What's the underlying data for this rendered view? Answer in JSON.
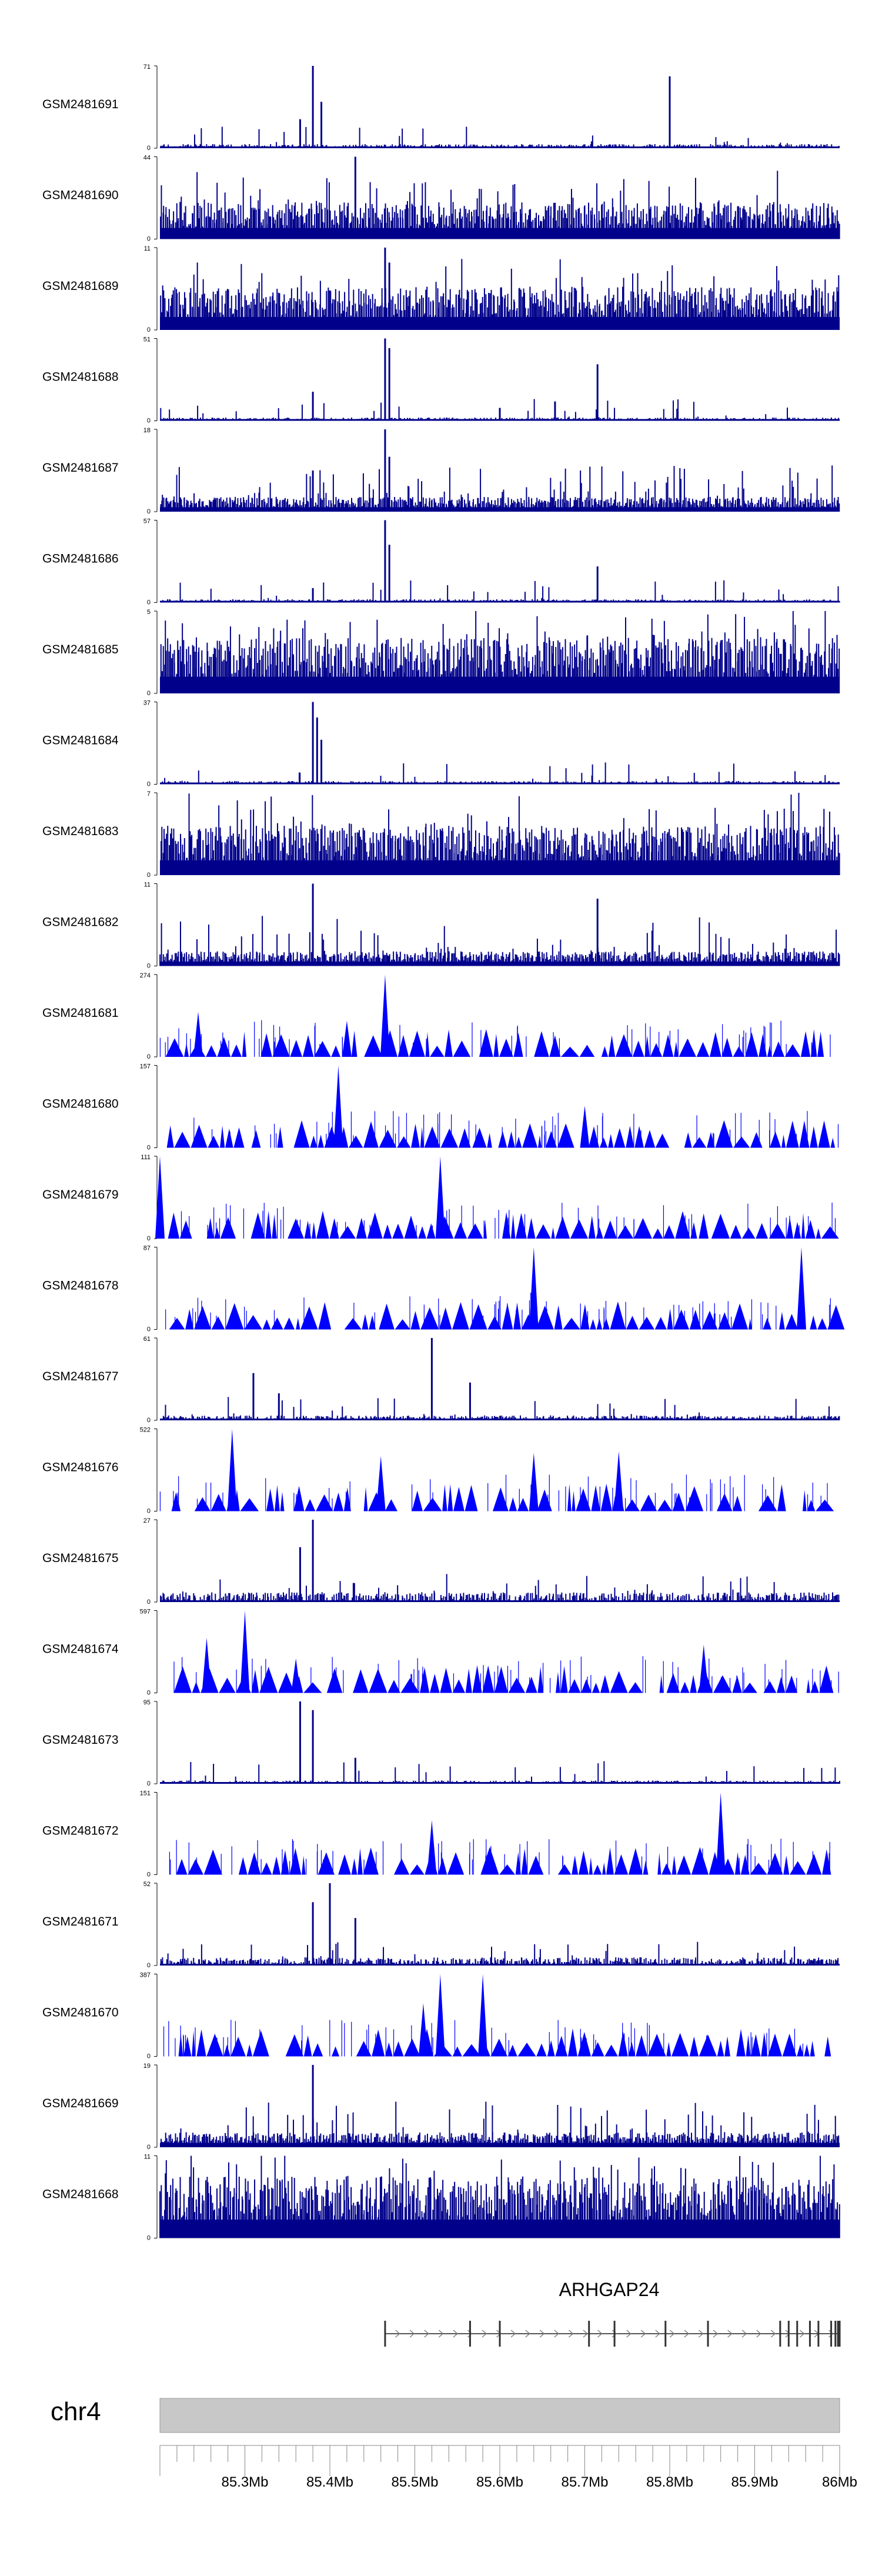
{
  "chart_data": {
    "type": "area",
    "chromosome": "chr4",
    "x_ticks": [
      "85.3Mb",
      "85.4Mb",
      "85.5Mb",
      "85.6Mb",
      "85.7Mb",
      "85.8Mb",
      "85.9Mb",
      "86Mb"
    ],
    "x_range_mb": [
      85.2,
      86.0
    ],
    "gene": {
      "name": "ARHGAP24",
      "start_mb": 85.465,
      "end_mb": 86.0,
      "exons_mb": [
        85.465,
        85.565,
        85.6,
        85.705,
        85.735,
        85.795,
        85.845,
        85.93,
        85.94,
        85.95,
        85.965,
        85.975,
        85.99,
        85.995,
        85.998,
        86.0
      ]
    },
    "series": [
      {
        "name": "GSM2481691",
        "ymax": 71,
        "style": "spiky",
        "baseline": 0.05,
        "peaks": [
          [
            85.38,
            71
          ],
          [
            85.365,
            25
          ],
          [
            85.8,
            62
          ],
          [
            85.39,
            40
          ]
        ]
      },
      {
        "name": "GSM2481690",
        "ymax": 44,
        "style": "dense",
        "baseline": 0.3,
        "peaks": [
          [
            85.43,
            44
          ]
        ]
      },
      {
        "name": "GSM2481689",
        "ymax": 11,
        "style": "dense",
        "baseline": 0.35,
        "peaks": [
          [
            85.465,
            11
          ],
          [
            85.47,
            9
          ]
        ]
      },
      {
        "name": "GSM2481688",
        "ymax": 51,
        "style": "spiky",
        "baseline": 0.04,
        "peaks": [
          [
            85.465,
            51
          ],
          [
            85.47,
            45
          ],
          [
            85.38,
            18
          ],
          [
            85.665,
            12
          ],
          [
            85.715,
            35
          ],
          [
            85.6,
            8
          ]
        ]
      },
      {
        "name": "GSM2481687",
        "ymax": 18,
        "style": "dense",
        "baseline": 0.12,
        "peaks": [
          [
            85.465,
            18
          ],
          [
            85.47,
            12
          ],
          [
            85.38,
            9
          ]
        ]
      },
      {
        "name": "GSM2481686",
        "ymax": 57,
        "style": "spiky",
        "baseline": 0.04,
        "peaks": [
          [
            85.465,
            57
          ],
          [
            85.47,
            40
          ],
          [
            85.38,
            10
          ],
          [
            85.715,
            25
          ]
        ]
      },
      {
        "name": "GSM2481685",
        "ymax": 5,
        "style": "dense",
        "baseline": 0.45,
        "peaks": []
      },
      {
        "name": "GSM2481684",
        "ymax": 37,
        "style": "spiky",
        "baseline": 0.04,
        "peaks": [
          [
            85.38,
            37
          ],
          [
            85.385,
            30
          ],
          [
            85.39,
            20
          ]
        ]
      },
      {
        "name": "GSM2481683",
        "ymax": 7,
        "style": "dense",
        "baseline": 0.4,
        "peaks": []
      },
      {
        "name": "GSM2481682",
        "ymax": 11,
        "style": "dense",
        "baseline": 0.12,
        "peaks": [
          [
            85.38,
            11
          ],
          [
            85.715,
            9
          ]
        ]
      },
      {
        "name": "GSM2481681",
        "ymax": 274,
        "style": "triangles",
        "peaks": [
          [
            85.245,
            150
          ],
          [
            85.465,
            274
          ],
          [
            85.42,
            120
          ]
        ]
      },
      {
        "name": "GSM2481680",
        "ymax": 157,
        "style": "triangles",
        "peaks": [
          [
            85.41,
            157
          ],
          [
            85.7,
            80
          ]
        ]
      },
      {
        "name": "GSM2481679",
        "ymax": 111,
        "style": "triangles",
        "peaks": [
          [
            85.2,
            111
          ],
          [
            85.53,
            111
          ]
        ]
      },
      {
        "name": "GSM2481678",
        "ymax": 87,
        "style": "triangles",
        "peaks": [
          [
            85.64,
            87
          ],
          [
            85.955,
            87
          ]
        ]
      },
      {
        "name": "GSM2481677",
        "ymax": 61,
        "style": "spiky",
        "baseline": 0.06,
        "peaks": [
          [
            85.31,
            35
          ],
          [
            85.52,
            61
          ],
          [
            85.565,
            28
          ],
          [
            85.34,
            20
          ]
        ]
      },
      {
        "name": "GSM2481676",
        "ymax": 522,
        "style": "triangles",
        "peaks": [
          [
            85.285,
            522
          ],
          [
            85.46,
            350
          ],
          [
            85.64,
            370
          ],
          [
            85.74,
            380
          ]
        ]
      },
      {
        "name": "GSM2481675",
        "ymax": 27,
        "style": "spiky",
        "baseline": 0.12,
        "peaks": [
          [
            85.38,
            27
          ],
          [
            85.365,
            18
          ]
        ]
      },
      {
        "name": "GSM2481674",
        "ymax": 597,
        "style": "triangles",
        "peaks": [
          [
            85.255,
            400
          ],
          [
            85.3,
            597
          ],
          [
            85.36,
            250
          ],
          [
            85.84,
            350
          ]
        ]
      },
      {
        "name": "GSM2481673",
        "ymax": 95,
        "style": "spiky",
        "baseline": 0.04,
        "peaks": [
          [
            85.365,
            95
          ],
          [
            85.38,
            85
          ],
          [
            85.43,
            30
          ]
        ]
      },
      {
        "name": "GSM2481672",
        "ymax": 151,
        "style": "triangles",
        "peaks": [
          [
            85.86,
            151
          ],
          [
            85.52,
            100
          ]
        ]
      },
      {
        "name": "GSM2481671",
        "ymax": 52,
        "style": "spiky",
        "baseline": 0.1,
        "peaks": [
          [
            85.4,
            52
          ],
          [
            85.38,
            40
          ],
          [
            85.43,
            30
          ]
        ]
      },
      {
        "name": "GSM2481670",
        "ymax": 387,
        "style": "triangles",
        "peaks": [
          [
            85.53,
            387
          ],
          [
            85.58,
            387
          ],
          [
            85.51,
            250
          ]
        ]
      },
      {
        "name": "GSM2481669",
        "ymax": 19,
        "style": "dense",
        "baseline": 0.12,
        "peaks": [
          [
            85.38,
            19
          ]
        ]
      },
      {
        "name": "GSM2481668",
        "ymax": 11,
        "style": "dense",
        "baseline": 0.5,
        "peaks": []
      }
    ]
  }
}
